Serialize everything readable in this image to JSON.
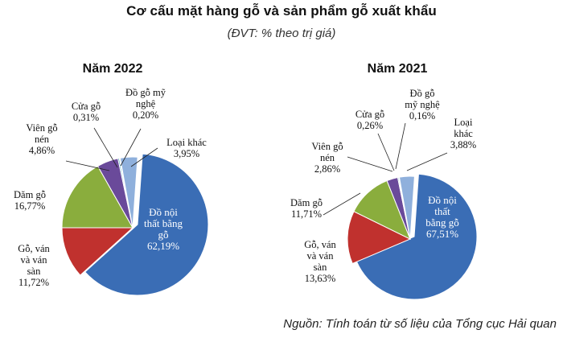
{
  "header": {
    "title": "Cơ cấu mặt hàng gỗ và sản phẩm gỗ xuất khẩu",
    "unit": "(ĐVT: % theo trị giá)"
  },
  "source": "Nguồn: Tính toán từ số liệu của Tổng cục Hải quan",
  "colors": {
    "noi_that": "#3a6db5",
    "go_van": "#c0312e",
    "dam_go": "#8aad3d",
    "vien_go": "#6a4a9a",
    "cua_go": "#3aa0b8",
    "my_nghe": "#e8912e",
    "loai_khac": "#8fb0dc"
  },
  "chart_data": [
    {
      "type": "pie",
      "title": "Năm 2022",
      "slices": [
        {
          "key": "noi_that",
          "label_lines": [
            "Đồ nội",
            "thất bằng",
            "gỗ"
          ],
          "value": 62.19,
          "value_text": "62,19%"
        },
        {
          "key": "go_van",
          "label_lines": [
            "Gỗ, ván",
            "và ván",
            "sàn"
          ],
          "value": 11.72,
          "value_text": "11,72%"
        },
        {
          "key": "dam_go",
          "label_lines": [
            "Dăm gỗ"
          ],
          "value": 16.77,
          "value_text": "16,77%"
        },
        {
          "key": "vien_go",
          "label_lines": [
            "Viên gỗ",
            "nén"
          ],
          "value": 4.86,
          "value_text": "4,86%"
        },
        {
          "key": "cua_go",
          "label_lines": [
            "Cửa gỗ"
          ],
          "value": 0.31,
          "value_text": "0,31%"
        },
        {
          "key": "my_nghe",
          "label_lines": [
            "Đồ gỗ mỹ",
            "nghệ"
          ],
          "value": 0.2,
          "value_text": "0,20%"
        },
        {
          "key": "loai_khac",
          "label_lines": [
            "Loại khác"
          ],
          "value": 3.95,
          "value_text": "3,95%"
        }
      ]
    },
    {
      "type": "pie",
      "title": "Năm 2021",
      "slices": [
        {
          "key": "noi_that",
          "label_lines": [
            "Đồ nội",
            "thất",
            "bằng gỗ"
          ],
          "value": 67.51,
          "value_text": "67,51%"
        },
        {
          "key": "go_van",
          "label_lines": [
            "Gỗ, ván",
            "và ván",
            "sàn"
          ],
          "value": 13.63,
          "value_text": "13,63%"
        },
        {
          "key": "dam_go",
          "label_lines": [
            "Dăm gỗ"
          ],
          "value": 11.71,
          "value_text": "11,71%"
        },
        {
          "key": "vien_go",
          "label_lines": [
            "Viên gỗ",
            "nén"
          ],
          "value": 2.86,
          "value_text": "2,86%"
        },
        {
          "key": "cua_go",
          "label_lines": [
            "Cửa gỗ"
          ],
          "value": 0.26,
          "value_text": "0,26%"
        },
        {
          "key": "my_nghe",
          "label_lines": [
            "Đồ gỗ",
            "mỹ nghệ"
          ],
          "value": 0.16,
          "value_text": "0,16%"
        },
        {
          "key": "loai_khac",
          "label_lines": [
            "Loại",
            "khác"
          ],
          "value": 3.88,
          "value_text": "3,88%"
        }
      ]
    }
  ]
}
